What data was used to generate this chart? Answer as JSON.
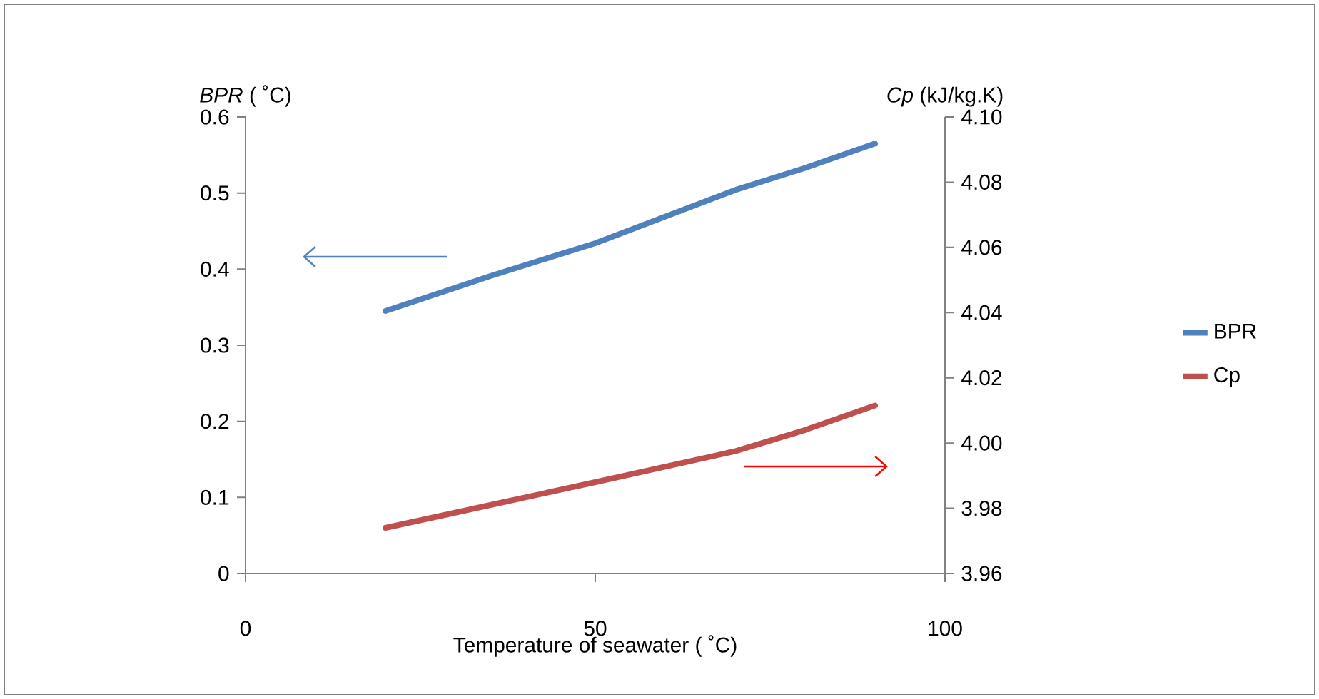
{
  "chart_data": {
    "type": "line",
    "xlabel": "Temperature of seawater ( ˚C)",
    "ylabel": "*BPR* ( ˚C)",
    "y2label": "*Cp* (kJ/kg.K)",
    "x": [
      20,
      35,
      50,
      70,
      80,
      90
    ],
    "series": [
      {
        "name": "BPR",
        "color": "#4f81bd",
        "values": [
          0.345,
          0.391,
          0.434,
          0.504,
          0.533,
          0.565
        ]
      },
      {
        "name": "Cp",
        "color": "#c0504d",
        "axis": "y2",
        "values": [
          3.974,
          3.981,
          3.988,
          3.9975,
          4.004,
          4.0115
        ]
      }
    ],
    "xlim": [
      0,
      100
    ],
    "xticks": [
      0,
      50,
      100
    ],
    "ylim": [
      0,
      0.6
    ],
    "yticks": [
      0,
      0.1,
      0.2,
      0.3,
      0.4,
      0.5,
      0.6
    ],
    "y2lim": [
      3.96,
      4.1
    ],
    "y2ticks": [
      3.96,
      3.98,
      {
        "value": 4.0,
        "label": "4.00"
      },
      4.02,
      4.04,
      4.06,
      4.08,
      {
        "value": 4.1,
        "label": "4.10"
      }
    ],
    "marker": "none",
    "legend": "right"
  }
}
